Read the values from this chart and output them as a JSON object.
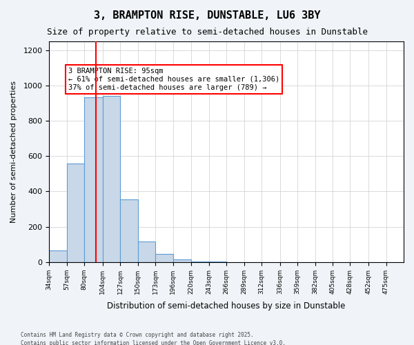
{
  "title": "3, BRAMPTON RISE, DUNSTABLE, LU6 3BY",
  "subtitle": "Size of property relative to semi-detached houses in Dunstable",
  "xlabel": "Distribution of semi-detached houses by size in Dunstable",
  "ylabel": "Number of semi-detached properties",
  "bar_color": "#c8d8e8",
  "bar_edge_color": "#5b9bd5",
  "vline_color": "red",
  "vline_x": 95,
  "annotation_text": "3 BRAMPTON RISE: 95sqm\n← 61% of semi-detached houses are smaller (1,306)\n37% of semi-detached houses are larger (789) →",
  "annotation_box_color": "red",
  "footnote1": "Contains HM Land Registry data © Crown copyright and database right 2025.",
  "footnote2": "Contains public sector information licensed under the Open Government Licence v3.0.",
  "bins": [
    34,
    57,
    80,
    104,
    127,
    150,
    173,
    196,
    220,
    243,
    266,
    289,
    312,
    336,
    359,
    382,
    405,
    428,
    452,
    475,
    498
  ],
  "counts": [
    65,
    560,
    935,
    940,
    355,
    115,
    45,
    15,
    5,
    2,
    1,
    1,
    0,
    0,
    0,
    0,
    0,
    0,
    0,
    0
  ],
  "ylim": [
    0,
    1250
  ],
  "yticks": [
    0,
    200,
    400,
    600,
    800,
    1000,
    1200
  ],
  "bg_color": "#f0f4f8",
  "plot_bg_color": "#ffffff"
}
